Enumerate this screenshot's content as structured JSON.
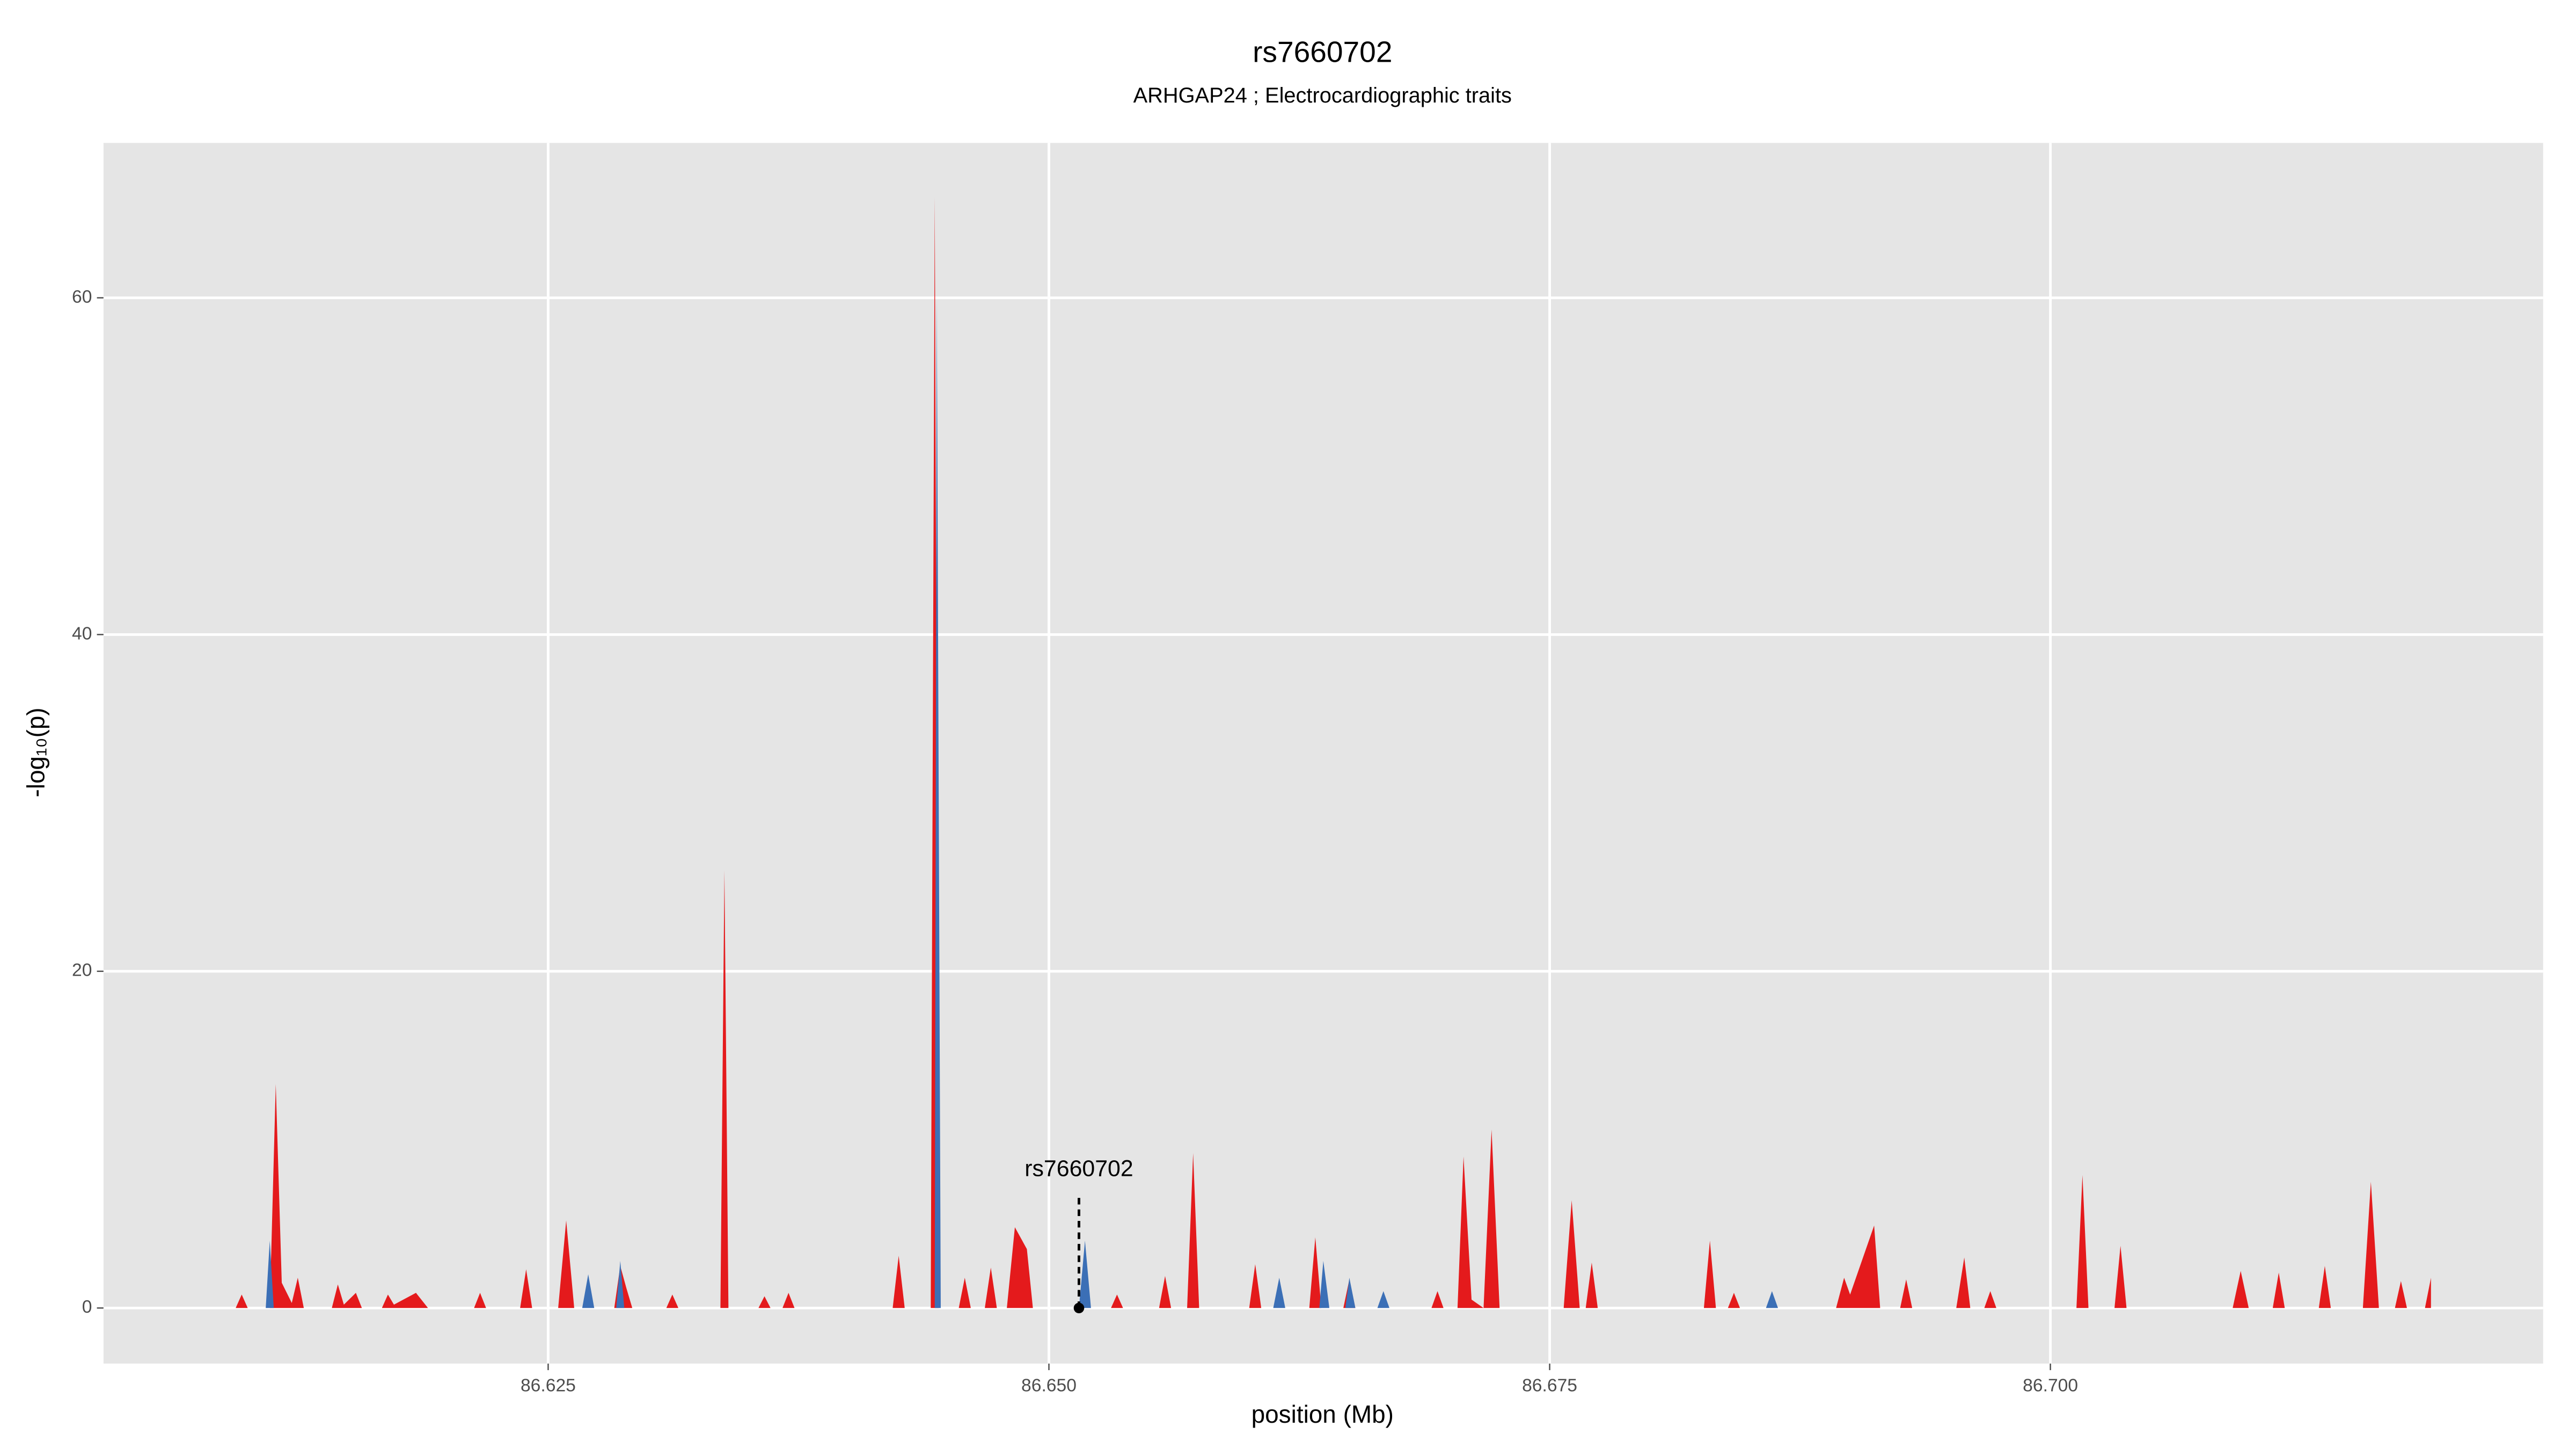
{
  "chart_data": {
    "type": "area",
    "title": "rs7660702",
    "subtitle": "ARHGAP24 ; Electrocardiographic traits",
    "x_label": "position (Mb)",
    "y_label": "-log₁₀(p)",
    "xlim": [
      86.6028,
      86.7246
    ],
    "ylim": [
      -3.3,
      69.2
    ],
    "xticks": [
      86.625,
      {
        "value": 86.65,
        "label": "86.650"
      },
      86.675,
      {
        "value": 86.7,
        "label": "86.700"
      }
    ],
    "yticks": [
      0,
      20,
      40,
      60
    ],
    "grid": true,
    "series": [
      {
        "color": "#e41a1c",
        "x": [
          86.608,
          86.6094,
          86.6097,
          86.61,
          86.6111,
          86.6114,
          86.6117,
          86.6122,
          86.6125,
          86.6128,
          86.6142,
          86.6145,
          86.6148,
          86.6154,
          86.6157,
          86.6167,
          86.617,
          86.6173,
          86.6184,
          86.619,
          86.6213,
          86.6216,
          86.6219,
          86.6236,
          86.6239,
          86.6242,
          86.6255,
          86.6259,
          86.6263,
          86.6283,
          86.6286,
          86.6289,
          86.6292,
          86.6309,
          86.6312,
          86.6315,
          86.6336,
          86.6338,
          86.634,
          86.6355,
          86.6358,
          86.6361,
          86.6367,
          86.637,
          86.6373,
          86.6422,
          86.6425,
          86.6428,
          86.6441,
          86.6443,
          86.6445,
          86.6455,
          86.6458,
          86.6461,
          86.6468,
          86.6471,
          86.6474,
          86.6479,
          86.6483,
          86.6489,
          86.6492,
          86.6531,
          86.6534,
          86.6537,
          86.6555,
          86.6558,
          86.6561,
          86.6569,
          86.6572,
          86.6575,
          86.66,
          86.6603,
          86.6606,
          86.663,
          86.6633,
          86.6636,
          86.6647,
          86.665,
          86.6653,
          86.6691,
          86.6694,
          86.6697,
          86.6704,
          86.6707,
          86.6711,
          86.6717,
          86.6721,
          86.6725,
          86.6757,
          86.6761,
          86.6765,
          86.6768,
          86.6771,
          86.6774,
          86.6827,
          86.683,
          86.6833,
          86.6839,
          86.6842,
          86.6845,
          86.6893,
          86.6897,
          86.69,
          86.6912,
          86.6915,
          86.6925,
          86.6928,
          86.6931,
          86.6953,
          86.6957,
          86.696,
          86.6967,
          86.697,
          86.6973,
          86.7013,
          86.7016,
          86.7019,
          86.7032,
          86.7035,
          86.7038,
          86.7091,
          86.7095,
          86.7099,
          86.7111,
          86.7114,
          86.7117,
          86.7134,
          86.7137,
          86.714,
          86.7156,
          86.716,
          86.7164,
          86.7172,
          86.7175,
          86.7178,
          86.7187,
          86.719
        ],
        "values": [
          0,
          0,
          0.8,
          0,
          0,
          13.3,
          1.5,
          0.3,
          1.8,
          0,
          0,
          1.4,
          0.2,
          0.9,
          0,
          0,
          0.8,
          0.2,
          0.9,
          0,
          0,
          0.9,
          0,
          0,
          2.3,
          0,
          0,
          5.2,
          0,
          0,
          2.5,
          1.2,
          0,
          0,
          0.8,
          0,
          0,
          26,
          0,
          0,
          0.7,
          0,
          0,
          0.9,
          0,
          0,
          3.1,
          0,
          0,
          66,
          0,
          0,
          1.8,
          0,
          0,
          2.4,
          0,
          0,
          4.8,
          3.5,
          0,
          0,
          0.8,
          0,
          0,
          1.9,
          0,
          0,
          9.2,
          0,
          0,
          2.6,
          0,
          0,
          4.2,
          0,
          0,
          1.7,
          0,
          0,
          1.0,
          0,
          0,
          9.0,
          0.5,
          0,
          10.6,
          0,
          0,
          6.4,
          0,
          0,
          2.7,
          0,
          0,
          4.0,
          0,
          0,
          0.9,
          0,
          0,
          1.8,
          0.8,
          4.9,
          0,
          0,
          1.7,
          0,
          0,
          3.0,
          0,
          0,
          1.0,
          0,
          0,
          7.9,
          0,
          0,
          3.7,
          0,
          0,
          2.2,
          0,
          0,
          2.1,
          0,
          0,
          2.5,
          0,
          0,
          7.5,
          0,
          0,
          1.6,
          0,
          0,
          1.8
        ]
      },
      {
        "color": "#3b6fb6",
        "x": [
          86.6109,
          86.6111,
          86.6113,
          86.6267,
          86.627,
          86.6273,
          86.6284,
          86.6286,
          86.6288,
          86.6443,
          86.6444,
          86.6446,
          86.6515,
          86.6518,
          86.6521,
          86.6612,
          86.6615,
          86.6618,
          86.6635,
          86.6637,
          86.664,
          86.6648,
          86.665,
          86.6653,
          86.6664,
          86.6667,
          86.667,
          86.6858,
          86.6861,
          86.6864
        ],
        "values": [
          0,
          4,
          0,
          0,
          2.0,
          0,
          0,
          2.8,
          0,
          0,
          60,
          0,
          0,
          4.0,
          0,
          0,
          1.8,
          0,
          0,
          2.8,
          0,
          0,
          1.8,
          0,
          0,
          1.0,
          0,
          0,
          1.0,
          0
        ]
      }
    ],
    "annotation": {
      "text": "rs7660702",
      "x": 86.6515,
      "y": 0
    }
  }
}
